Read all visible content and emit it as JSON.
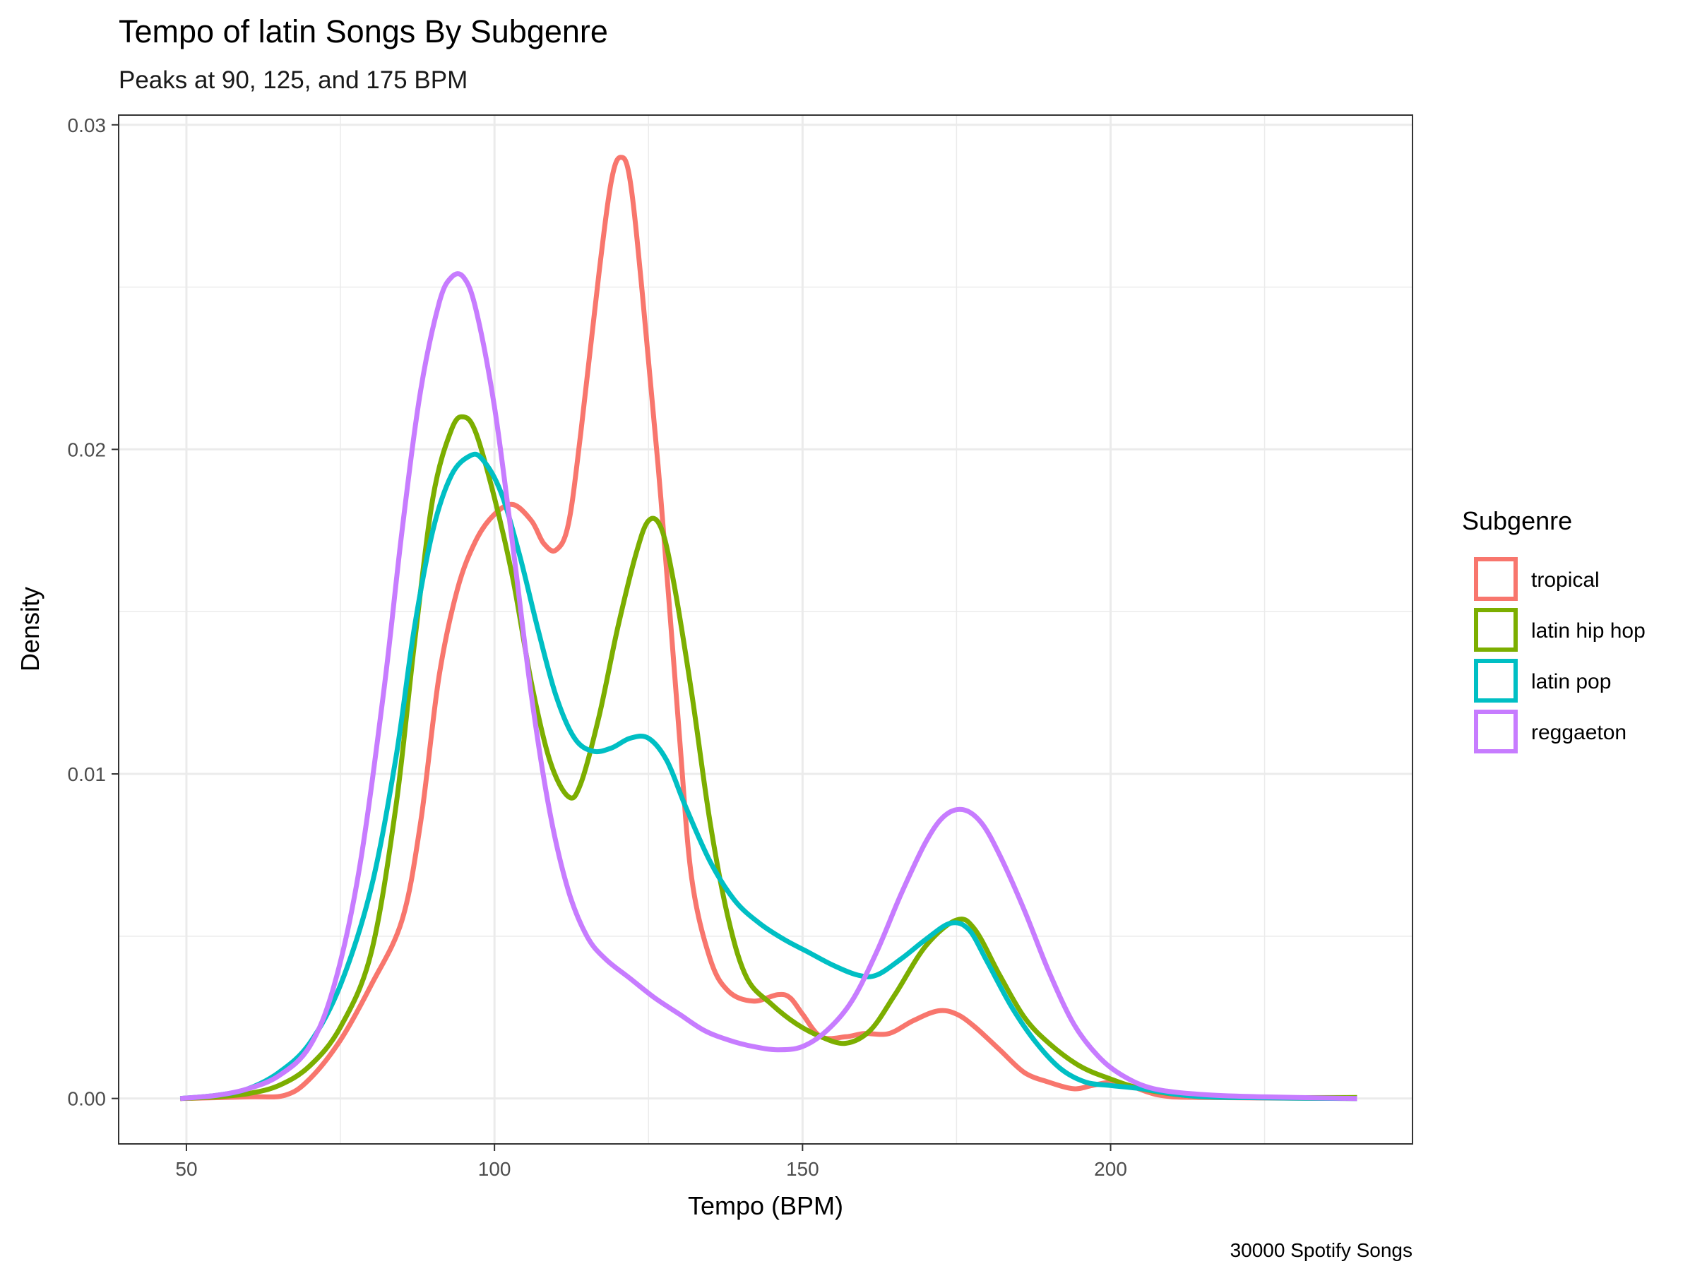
{
  "chart_data": {
    "type": "line",
    "title": "Tempo of latin Songs By Subgenre",
    "subtitle": "Peaks at 90, 125, and 175 BPM",
    "xlabel": "Tempo (BPM)",
    "ylabel": "Density",
    "caption": "30000 Spotify Songs",
    "xlim": [
      39,
      249
    ],
    "ylim": [
      -0.0014,
      0.0303
    ],
    "x_ticks": [
      50,
      100,
      150,
      200
    ],
    "x_tick_labels": [
      "50",
      "100",
      "150",
      "200"
    ],
    "y_ticks": [
      0,
      0.01,
      0.02,
      0.03
    ],
    "y_tick_labels": [
      "0.00",
      "0.01",
      "0.02",
      "0.03"
    ],
    "grid": true,
    "legend": {
      "title": "Subgenre",
      "position": "right"
    },
    "series": [
      {
        "name": "tropical",
        "color": "#F8766D",
        "points": [
          [
            49,
            0
          ],
          [
            60,
            5e-05
          ],
          [
            66,
            0.0001
          ],
          [
            70,
            0.0006
          ],
          [
            75,
            0.0018
          ],
          [
            80,
            0.0035
          ],
          [
            85,
            0.0055
          ],
          [
            88,
            0.0085
          ],
          [
            91,
            0.013
          ],
          [
            94,
            0.0157
          ],
          [
            97,
            0.0172
          ],
          [
            100,
            0.018
          ],
          [
            103,
            0.0183
          ],
          [
            106,
            0.0178
          ],
          [
            108,
            0.0171
          ],
          [
            110,
            0.0169
          ],
          [
            112,
            0.0177
          ],
          [
            114,
            0.0205
          ],
          [
            117,
            0.0255
          ],
          [
            119,
            0.0283
          ],
          [
            120.5,
            0.029
          ],
          [
            122,
            0.0283
          ],
          [
            124,
            0.0248
          ],
          [
            127,
            0.0185
          ],
          [
            130,
            0.0112
          ],
          [
            132,
            0.0068
          ],
          [
            135,
            0.0043
          ],
          [
            138,
            0.0033
          ],
          [
            142,
            0.003
          ],
          [
            146,
            0.0032
          ],
          [
            148,
            0.0031
          ],
          [
            150,
            0.0026
          ],
          [
            153,
            0.0019
          ],
          [
            157,
            0.0019
          ],
          [
            160,
            0.002
          ],
          [
            164,
            0.002
          ],
          [
            168,
            0.0024
          ],
          [
            172,
            0.0027
          ],
          [
            175,
            0.0026
          ],
          [
            178,
            0.0022
          ],
          [
            182,
            0.0015
          ],
          [
            186,
            0.0008
          ],
          [
            190,
            0.0005
          ],
          [
            194,
            0.0003
          ],
          [
            197,
            0.0004
          ],
          [
            200,
            0.0005
          ],
          [
            203,
            0.0004
          ],
          [
            208,
            0.0001
          ],
          [
            215,
            3e-05
          ],
          [
            240,
            0
          ]
        ]
      },
      {
        "name": "latin hip hop",
        "color": "#7CAE00",
        "points": [
          [
            49,
            0
          ],
          [
            55,
            5e-05
          ],
          [
            60,
            0.00015
          ],
          [
            65,
            0.0004
          ],
          [
            70,
            0.001
          ],
          [
            75,
            0.0022
          ],
          [
            80,
            0.0045
          ],
          [
            84,
            0.009
          ],
          [
            87,
            0.014
          ],
          [
            90,
            0.0185
          ],
          [
            93,
            0.0206
          ],
          [
            95,
            0.021
          ],
          [
            97,
            0.0205
          ],
          [
            100,
            0.0185
          ],
          [
            103,
            0.016
          ],
          [
            106,
            0.0128
          ],
          [
            109,
            0.0104
          ],
          [
            112,
            0.0093
          ],
          [
            114,
            0.0097
          ],
          [
            117,
            0.0118
          ],
          [
            120,
            0.0145
          ],
          [
            123,
            0.0168
          ],
          [
            125,
            0.0178
          ],
          [
            127,
            0.0176
          ],
          [
            129,
            0.016
          ],
          [
            132,
            0.0125
          ],
          [
            135,
            0.0085
          ],
          [
            138,
            0.0055
          ],
          [
            141,
            0.0037
          ],
          [
            145,
            0.0029
          ],
          [
            149,
            0.0023
          ],
          [
            153,
            0.0019
          ],
          [
            157,
            0.0017
          ],
          [
            161,
            0.0021
          ],
          [
            165,
            0.0032
          ],
          [
            170,
            0.0047
          ],
          [
            175,
            0.0055
          ],
          [
            178,
            0.0052
          ],
          [
            182,
            0.0038
          ],
          [
            186,
            0.0025
          ],
          [
            190,
            0.0017
          ],
          [
            195,
            0.001
          ],
          [
            200,
            0.0006
          ],
          [
            205,
            0.0003
          ],
          [
            212,
            0.0001
          ],
          [
            220,
            3e-05
          ],
          [
            240,
            3e-05
          ]
        ]
      },
      {
        "name": "latin pop",
        "color": "#00BFC4",
        "points": [
          [
            49,
            0
          ],
          [
            55,
            0.0001
          ],
          [
            60,
            0.0003
          ],
          [
            65,
            0.0008
          ],
          [
            70,
            0.0017
          ],
          [
            75,
            0.0035
          ],
          [
            80,
            0.0065
          ],
          [
            84,
            0.0105
          ],
          [
            87,
            0.0145
          ],
          [
            90,
            0.0175
          ],
          [
            93,
            0.0192
          ],
          [
            96,
            0.0198
          ],
          [
            98,
            0.0197
          ],
          [
            101,
            0.0187
          ],
          [
            104,
            0.0168
          ],
          [
            107,
            0.0145
          ],
          [
            110,
            0.0124
          ],
          [
            113,
            0.0111
          ],
          [
            116,
            0.0107
          ],
          [
            119,
            0.0108
          ],
          [
            122,
            0.0111
          ],
          [
            125,
            0.0111
          ],
          [
            128,
            0.0104
          ],
          [
            131,
            0.009
          ],
          [
            135,
            0.0073
          ],
          [
            139,
            0.0061
          ],
          [
            143,
            0.0054
          ],
          [
            147,
            0.0049
          ],
          [
            151,
            0.0045
          ],
          [
            155,
            0.0041
          ],
          [
            159,
            0.0038
          ],
          [
            162,
            0.0038
          ],
          [
            166,
            0.0043
          ],
          [
            170,
            0.0049
          ],
          [
            174,
            0.0054
          ],
          [
            177,
            0.0052
          ],
          [
            180,
            0.0042
          ],
          [
            184,
            0.0028
          ],
          [
            188,
            0.0017
          ],
          [
            192,
            0.0009
          ],
          [
            196,
            0.0005
          ],
          [
            200,
            0.0004
          ],
          [
            205,
            0.0003
          ],
          [
            212,
            0.0001
          ],
          [
            220,
            3e-05
          ],
          [
            240,
            0
          ]
        ]
      },
      {
        "name": "reggaeton",
        "color": "#C77CFF",
        "points": [
          [
            49,
            0
          ],
          [
            55,
            0.0001
          ],
          [
            60,
            0.0003
          ],
          [
            65,
            0.0007
          ],
          [
            70,
            0.0016
          ],
          [
            74,
            0.0035
          ],
          [
            78,
            0.007
          ],
          [
            82,
            0.0125
          ],
          [
            85,
            0.0175
          ],
          [
            88,
            0.0218
          ],
          [
            91,
            0.0245
          ],
          [
            93,
            0.0253
          ],
          [
            95,
            0.0253
          ],
          [
            97,
            0.0243
          ],
          [
            100,
            0.0213
          ],
          [
            103,
            0.017
          ],
          [
            106,
            0.0124
          ],
          [
            109,
            0.0088
          ],
          [
            112,
            0.0064
          ],
          [
            115,
            0.005
          ],
          [
            118,
            0.0043
          ],
          [
            122,
            0.0037
          ],
          [
            126,
            0.0031
          ],
          [
            130,
            0.0026
          ],
          [
            134,
            0.0021
          ],
          [
            138,
            0.0018
          ],
          [
            142,
            0.0016
          ],
          [
            146,
            0.0015
          ],
          [
            150,
            0.0016
          ],
          [
            154,
            0.0021
          ],
          [
            158,
            0.003
          ],
          [
            162,
            0.0045
          ],
          [
            166,
            0.0063
          ],
          [
            170,
            0.0079
          ],
          [
            173,
            0.0087
          ],
          [
            176,
            0.0089
          ],
          [
            179,
            0.0085
          ],
          [
            182,
            0.0075
          ],
          [
            186,
            0.0058
          ],
          [
            190,
            0.0039
          ],
          [
            194,
            0.0023
          ],
          [
            198,
            0.0013
          ],
          [
            202,
            0.0007
          ],
          [
            207,
            0.0003
          ],
          [
            215,
            0.00012
          ],
          [
            225,
            5e-05
          ],
          [
            240,
            0
          ]
        ]
      }
    ]
  }
}
